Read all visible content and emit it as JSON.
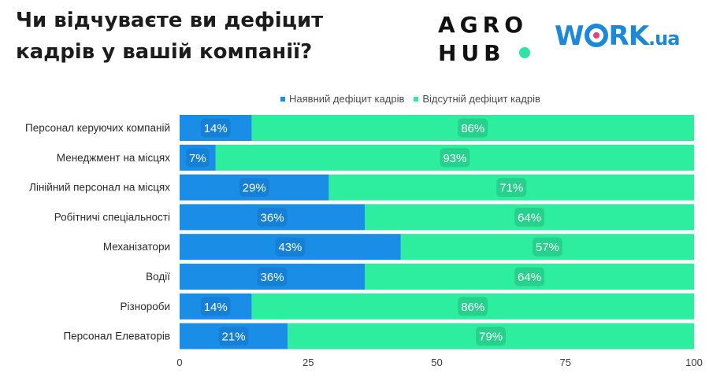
{
  "title": {
    "line1": "Чи відчуваєте ви дефіцит",
    "line2": "кадрів у вашій компанії?"
  },
  "logos": {
    "agro_line1": "AGRO",
    "agro_line2": "HUB",
    "work_prefix": "W",
    "work_suffix": "RK",
    "work_domain": ".ua"
  },
  "colors": {
    "series_1": "#1a8ee6",
    "series_2": "#2ded9f",
    "agro_dot": "#2fe3a6",
    "work_brand": "#1e88d8"
  },
  "chart_data": {
    "type": "bar",
    "orientation": "horizontal",
    "stacked": true,
    "categories": [
      "Персонал керуючих компаній",
      "Менеджмент на місцях",
      "Лінійний персонал на місцях",
      "Робітничі спеціальності",
      "Механізатори",
      "Водії",
      "Різнороби",
      "Персонал Елеваторів"
    ],
    "series": [
      {
        "name": "Наявний дефіцит кадрів",
        "values": [
          14,
          7,
          29,
          36,
          43,
          36,
          14,
          21
        ],
        "labels": [
          "14%",
          "7%",
          "29%",
          "36%",
          "43%",
          "36%",
          "14%",
          "21%"
        ]
      },
      {
        "name": "Відсутній дефіцит кадрів",
        "values": [
          86,
          93,
          71,
          64,
          57,
          64,
          86,
          79
        ],
        "labels": [
          "86%",
          "93%",
          "71%",
          "64%",
          "57%",
          "64%",
          "86%",
          "79%"
        ]
      }
    ],
    "xlim": [
      0,
      100
    ],
    "xticks": [
      "0",
      "25",
      "50",
      "75",
      "100"
    ],
    "legend_position": "top",
    "grid": false
  }
}
